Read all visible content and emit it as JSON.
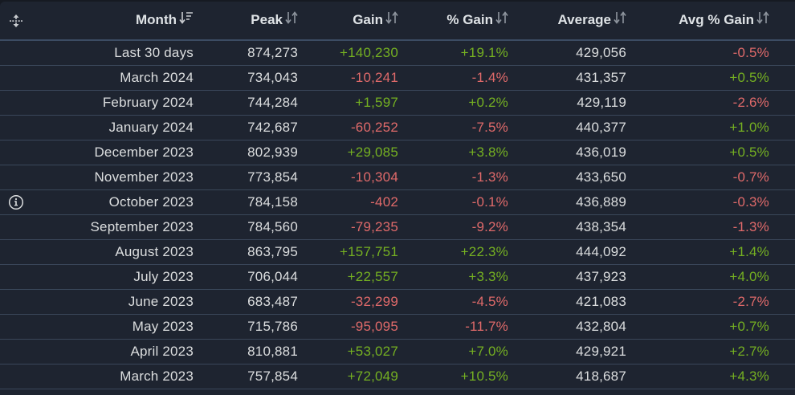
{
  "colors": {
    "background": "#1e2430",
    "header_border": "#3c4c63",
    "row_border": "#3a475a",
    "text": "#dcdedf",
    "positive": "#75b022",
    "negative": "#e06a6a"
  },
  "header": {
    "expand_icon": "expand-vertical-icon",
    "columns": [
      {
        "label": "Month",
        "sort_icon": "sort-descending-icon"
      },
      {
        "label": "Peak",
        "sort_icon": "sort-icon"
      },
      {
        "label": "Gain",
        "sort_icon": "sort-icon"
      },
      {
        "label": "% Gain",
        "sort_icon": "sort-icon"
      },
      {
        "label": "Average",
        "sort_icon": "sort-icon"
      },
      {
        "label": "Avg % Gain",
        "sort_icon": "sort-icon"
      }
    ]
  },
  "rows": [
    {
      "month": "Last 30 days",
      "peak": "874,273",
      "gain": "+140,230",
      "pct_gain": "+19.1%",
      "average": "429,056",
      "avg_pct_gain": "-0.5%"
    },
    {
      "month": "March 2024",
      "peak": "734,043",
      "gain": "-10,241",
      "pct_gain": "-1.4%",
      "average": "431,357",
      "avg_pct_gain": "+0.5%"
    },
    {
      "month": "February 2024",
      "peak": "744,284",
      "gain": "+1,597",
      "pct_gain": "+0.2%",
      "average": "429,119",
      "avg_pct_gain": "-2.6%"
    },
    {
      "month": "January 2024",
      "peak": "742,687",
      "gain": "-60,252",
      "pct_gain": "-7.5%",
      "average": "440,377",
      "avg_pct_gain": "+1.0%"
    },
    {
      "month": "December 2023",
      "peak": "802,939",
      "gain": "+29,085",
      "pct_gain": "+3.8%",
      "average": "436,019",
      "avg_pct_gain": "+0.5%"
    },
    {
      "month": "November 2023",
      "peak": "773,854",
      "gain": "-10,304",
      "pct_gain": "-1.3%",
      "average": "433,650",
      "avg_pct_gain": "-0.7%"
    },
    {
      "month": "October 2023",
      "peak": "784,158",
      "gain": "-402",
      "pct_gain": "-0.1%",
      "average": "436,889",
      "avg_pct_gain": "-0.3%",
      "icon": "info-icon"
    },
    {
      "month": "September 2023",
      "peak": "784,560",
      "gain": "-79,235",
      "pct_gain": "-9.2%",
      "average": "438,354",
      "avg_pct_gain": "-1.3%"
    },
    {
      "month": "August 2023",
      "peak": "863,795",
      "gain": "+157,751",
      "pct_gain": "+22.3%",
      "average": "444,092",
      "avg_pct_gain": "+1.4%"
    },
    {
      "month": "July 2023",
      "peak": "706,044",
      "gain": "+22,557",
      "pct_gain": "+3.3%",
      "average": "437,923",
      "avg_pct_gain": "+4.0%"
    },
    {
      "month": "June 2023",
      "peak": "683,487",
      "gain": "-32,299",
      "pct_gain": "-4.5%",
      "average": "421,083",
      "avg_pct_gain": "-2.7%"
    },
    {
      "month": "May 2023",
      "peak": "715,786",
      "gain": "-95,095",
      "pct_gain": "-11.7%",
      "average": "432,804",
      "avg_pct_gain": "+0.7%"
    },
    {
      "month": "April 2023",
      "peak": "810,881",
      "gain": "+53,027",
      "pct_gain": "+7.0%",
      "average": "429,921",
      "avg_pct_gain": "+2.7%"
    },
    {
      "month": "March 2023",
      "peak": "757,854",
      "gain": "+72,049",
      "pct_gain": "+10.5%",
      "average": "418,687",
      "avg_pct_gain": "+4.3%"
    }
  ]
}
